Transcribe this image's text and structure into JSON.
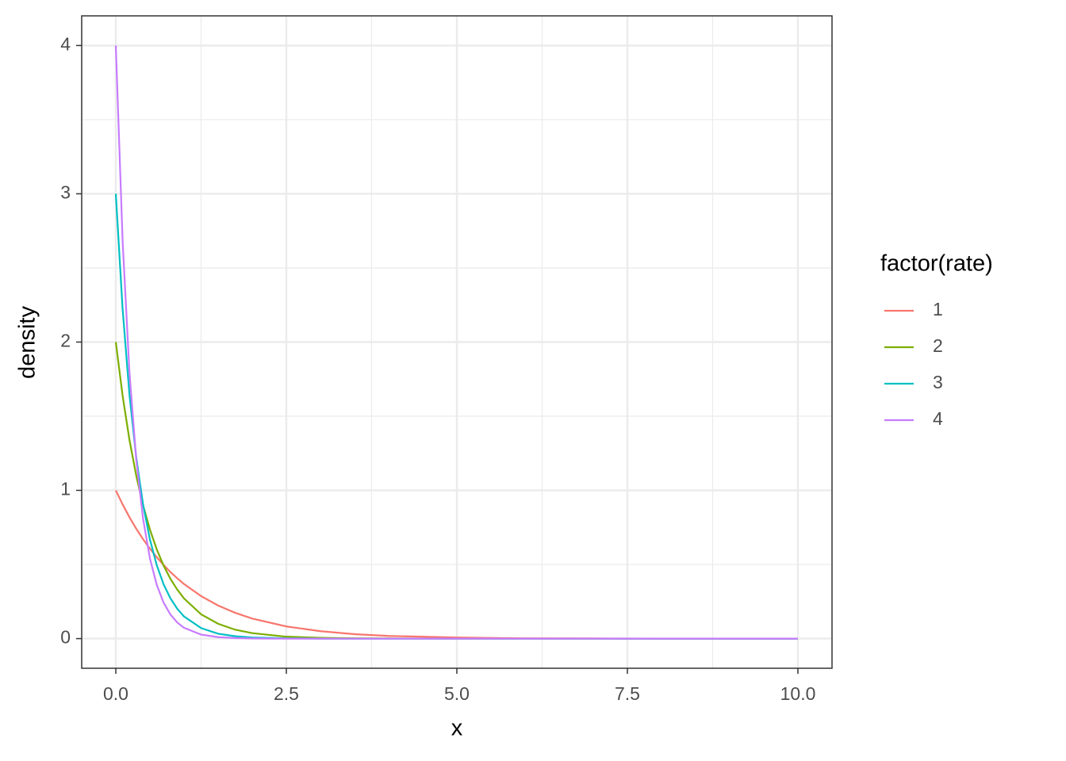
{
  "chart_data": {
    "type": "line",
    "x_label": "x",
    "y_label": "density",
    "x": [
      0,
      0.1,
      0.2,
      0.3,
      0.4,
      0.5,
      0.6,
      0.7,
      0.8,
      0.9,
      1,
      1.25,
      1.5,
      1.75,
      2,
      2.5,
      3,
      3.5,
      4,
      5,
      6,
      7,
      8,
      9,
      10
    ],
    "series": [
      {
        "name": "1",
        "color": "#F8766D",
        "values": [
          1,
          0.905,
          0.819,
          0.741,
          0.67,
          0.607,
          0.549,
          0.497,
          0.449,
          0.407,
          0.368,
          0.287,
          0.223,
          0.174,
          0.135,
          0.082,
          0.05,
          0.03,
          0.018,
          0.007,
          0.002,
          0.001,
          0,
          0,
          0
        ]
      },
      {
        "name": "2",
        "color": "#7CAE00",
        "values": [
          2,
          1.637,
          1.341,
          1.098,
          0.899,
          0.736,
          0.602,
          0.493,
          0.404,
          0.331,
          0.271,
          0.164,
          0.1,
          0.06,
          0.037,
          0.013,
          0.005,
          0.002,
          0.001,
          0,
          0,
          0,
          0,
          0,
          0
        ]
      },
      {
        "name": "3",
        "color": "#00BFC4",
        "values": [
          3,
          2.222,
          1.646,
          1.22,
          0.904,
          0.669,
          0.496,
          0.367,
          0.272,
          0.202,
          0.149,
          0.071,
          0.033,
          0.016,
          0.007,
          0.002,
          0,
          0,
          0,
          0,
          0,
          0,
          0,
          0,
          0
        ]
      },
      {
        "name": "4",
        "color": "#C77CFF",
        "values": [
          4,
          2.681,
          1.797,
          1.205,
          0.808,
          0.541,
          0.363,
          0.243,
          0.163,
          0.109,
          0.073,
          0.027,
          0.01,
          0.004,
          0.001,
          0,
          0,
          0,
          0,
          0,
          0,
          0,
          0,
          0,
          0
        ]
      }
    ],
    "xlim": [
      -0.5,
      10.5
    ],
    "xticks": [
      {
        "value": 0,
        "label": "0.0"
      },
      2.5,
      {
        "value": 5,
        "label": "5.0"
      },
      7.5,
      {
        "value": 10,
        "label": "10.0"
      }
    ],
    "ylim": [
      -0.2,
      4.2
    ],
    "yticks": [
      0,
      1,
      2,
      3,
      4
    ],
    "grid": true,
    "legend_title": "factor(rate)",
    "legend_position": "right"
  }
}
